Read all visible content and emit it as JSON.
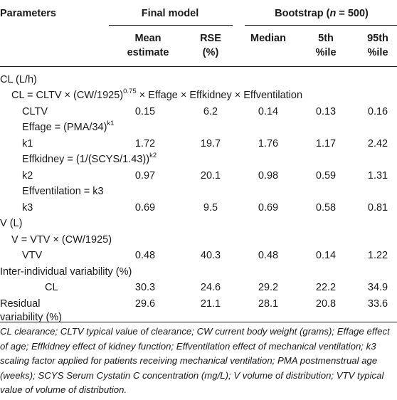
{
  "header": {
    "parameters": "Parameters",
    "final_model": "Final model",
    "bootstrap_prefix": "Bootstrap (",
    "bootstrap_n": "n",
    "bootstrap_suffix": " = 500)",
    "mean_1": "Mean",
    "mean_2": "estimate",
    "rse_1": "RSE",
    "rse_2": "(%)",
    "median": "Median",
    "p5_1": "5th",
    "p5_2": "%ile",
    "p95_1": "95th",
    "p95_2": "%ile"
  },
  "rows": {
    "cl_head": "CL (L/h)",
    "cl_eq_a": "CL = CLTV × (CW/1925)",
    "cl_eq_sup": "0.75",
    "cl_eq_b": " × Effage × Effkidney × Effventilation",
    "cltv": {
      "label": "CLTV",
      "mean": "0.15",
      "rse": "6.2",
      "median": "0.14",
      "p5": "0.13",
      "p95": "0.16"
    },
    "effage_a": "Effage = (PMA/34)",
    "effage_sup": "k1",
    "k1": {
      "label": "k1",
      "mean": "1.72",
      "rse": "19.7",
      "median": "1.76",
      "p5": "1.17",
      "p95": "2.42"
    },
    "effkid_a": "Effkidney = (1/(SCYS/1.43))",
    "effkid_sup": "k2",
    "k2": {
      "label": "k2",
      "mean": "0.97",
      "rse": "20.1",
      "median": "0.98",
      "p5": "0.59",
      "p95": "1.31"
    },
    "effvent": "Effventilation = k3",
    "k3": {
      "label": "k3",
      "mean": "0.69",
      "rse": "9.5",
      "median": "0.69",
      "p5": "0.58",
      "p95": "0.81"
    },
    "v_head": "V (L)",
    "v_eq": "V = VTV × (CW/1925)",
    "vtv": {
      "label": "VTV",
      "mean": "0.48",
      "rse": "40.3",
      "median": "0.48",
      "p5": "0.14",
      "p95": "1.22"
    },
    "iiv_head": "Inter-individual variability (%)",
    "iiv_cl": {
      "label": "CL",
      "mean": "30.3",
      "rse": "24.6",
      "median": "29.2",
      "p5": "22.2",
      "p95": "34.9"
    },
    "resid_1": "Residual",
    "resid_2": "variability (%)",
    "resid": {
      "mean": "29.6",
      "rse": "21.1",
      "median": "28.1",
      "p5": "20.8",
      "p95": "33.6"
    }
  },
  "footnote": "CL clearance; CLTV typical value of clearance; CW current body weight (grams); Effage effect of age; Effkidney effect of kidney function; Effventilation effect of mechanical ventilation; k3 scaling factor applied for patients receiving mechanical ventilation; PMA postmenstrual age (weeks); SCYS Serum Cystatin C concentration (mg/L); V volume of distribution; VTV typical value of volume of distribution."
}
